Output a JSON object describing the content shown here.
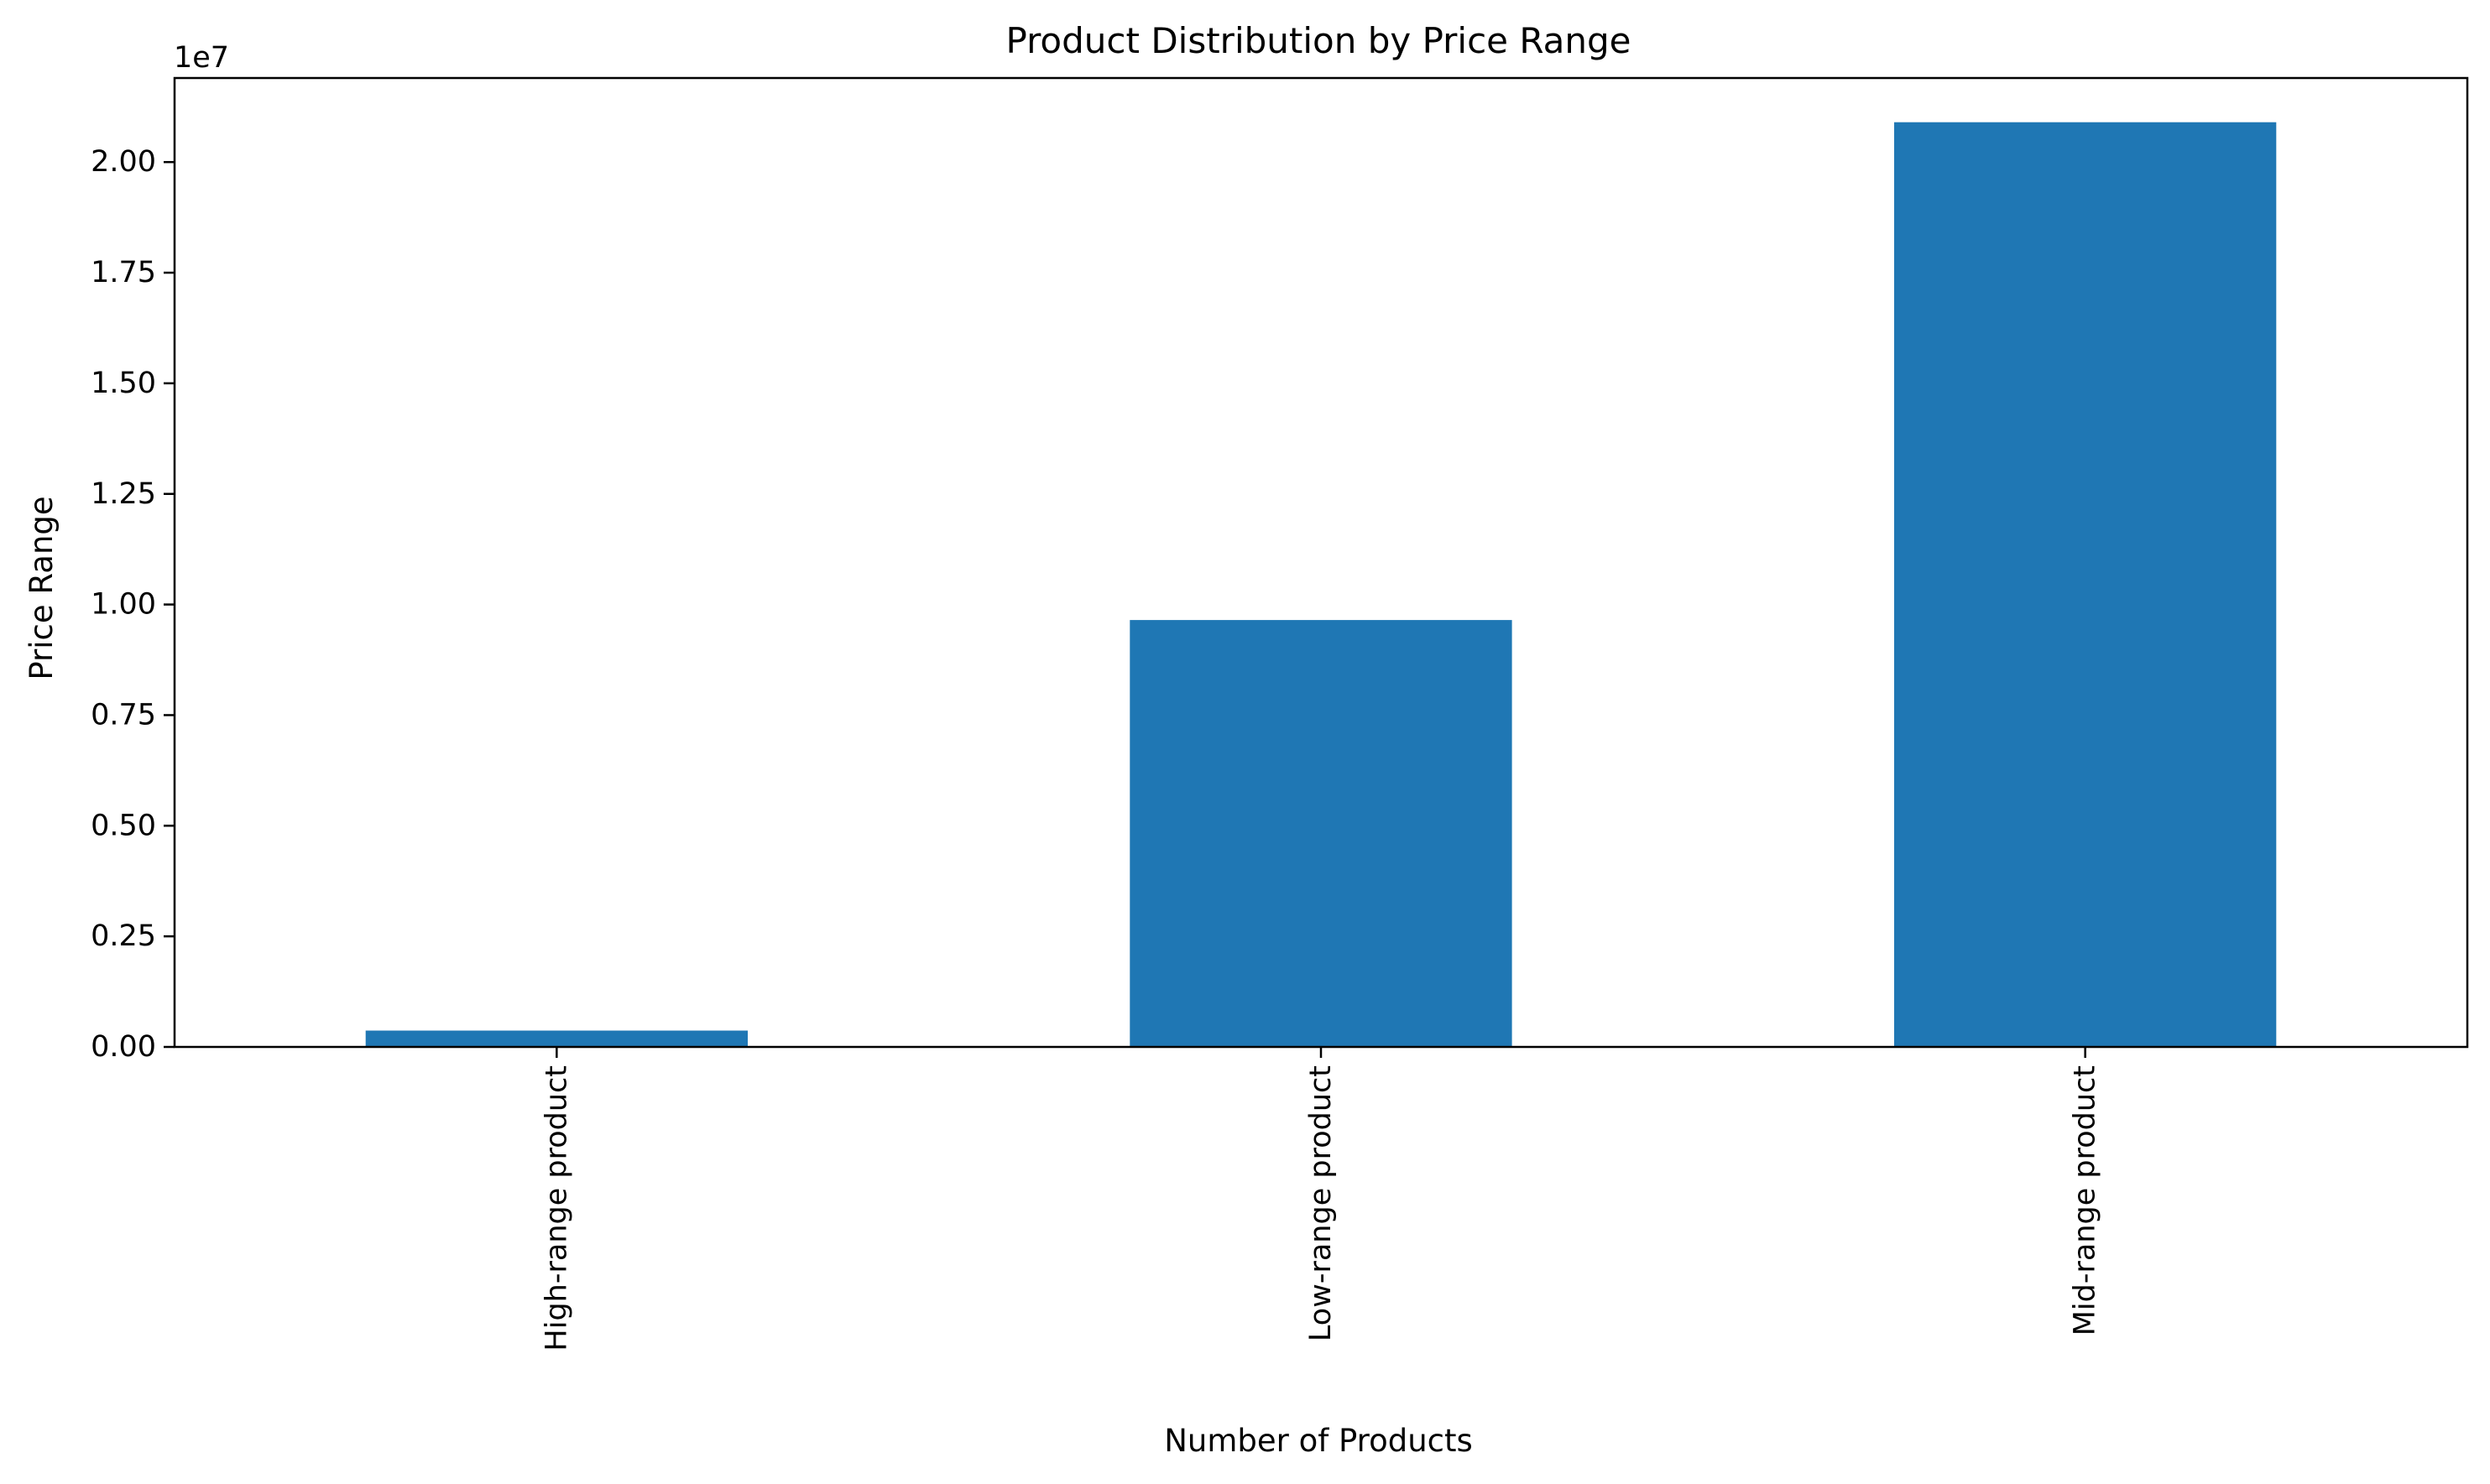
{
  "chart_data": {
    "type": "bar",
    "title": "Product Distribution by Price Range",
    "xlabel": "Number of Products",
    "ylabel": "Price Range",
    "categories": [
      "High-range product",
      "Low-range product",
      "Mid-range product"
    ],
    "values": [
      370000,
      9650000,
      20900000
    ],
    "ylim": [
      0,
      21900000
    ],
    "yticks": [
      0,
      2500000,
      5000000,
      7500000,
      10000000,
      12500000,
      15000000,
      17500000,
      20000000
    ],
    "ytick_labels": [
      "0.00",
      "0.25",
      "0.50",
      "0.75",
      "1.00",
      "1.25",
      "1.50",
      "1.75",
      "2.00"
    ],
    "y_offset_label": "1e7",
    "bar_color": "#1f77b4",
    "grid": false,
    "legend": "none"
  }
}
